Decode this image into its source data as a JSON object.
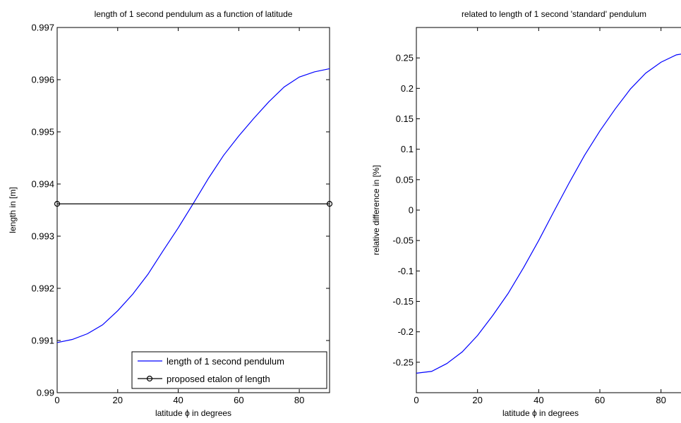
{
  "chart_data": [
    {
      "type": "line",
      "title": "length of 1 second pendulum as a function of latitude",
      "xlabel": "latitude ϕ in degrees",
      "ylabel": "length in [m]",
      "xlim": [
        0,
        90
      ],
      "ylim": [
        0.99,
        0.997
      ],
      "xticks": [
        0,
        20,
        40,
        60,
        80
      ],
      "xtick_labels": [
        "0",
        "20",
        "40",
        "60",
        "80"
      ],
      "yticks": [
        0.99,
        0.991,
        0.992,
        0.993,
        0.994,
        0.995,
        0.996,
        0.997
      ],
      "ytick_labels": [
        "0.99",
        "0.991",
        "0.992",
        "0.993",
        "0.994",
        "0.995",
        "0.996",
        "0.997"
      ],
      "grid": false,
      "legend_position": "bottom-right",
      "series": [
        {
          "name": "length of 1 second pendulum",
          "color": "#0000ff",
          "marker": "none",
          "x": [
            0,
            5,
            10,
            15,
            20,
            25,
            30,
            35,
            40,
            45,
            50,
            55,
            60,
            65,
            70,
            75,
            80,
            85,
            90
          ],
          "y": [
            0.99096,
            0.99102,
            0.99113,
            0.9913,
            0.99157,
            0.99189,
            0.99227,
            0.99272,
            0.99316,
            0.99363,
            0.99411,
            0.99455,
            0.99492,
            0.99526,
            0.99558,
            0.99586,
            0.99605,
            0.99615,
            0.99621
          ]
        },
        {
          "name": "proposed etalon of length",
          "color": "#000000",
          "marker": "o",
          "x": [
            0,
            90
          ],
          "y": [
            0.99362,
            0.99362
          ]
        }
      ]
    },
    {
      "type": "line",
      "title": "related to length of 1 second 'standard' pendulum",
      "xlabel": "latitude ϕ in degrees",
      "ylabel": "relative difference in [%]",
      "xlim": [
        0,
        90
      ],
      "ylim": [
        -0.3,
        0.3
      ],
      "xticks": [
        0,
        20,
        40,
        60,
        80
      ],
      "xtick_labels": [
        "0",
        "20",
        "40",
        "60",
        "80"
      ],
      "yticks": [
        -0.25,
        -0.2,
        -0.15,
        -0.1,
        -0.05,
        0,
        0.05,
        0.1,
        0.15,
        0.2,
        0.25
      ],
      "ytick_labels": [
        "-0.25",
        "-0.2",
        "-0.15",
        "-0.1",
        "-0.05",
        "0",
        "0.05",
        "0.1",
        "0.15",
        "0.2",
        "0.25"
      ],
      "grid": false,
      "series": [
        {
          "color": "#0000ff",
          "marker": "none",
          "x": [
            0,
            5,
            10,
            15,
            20,
            25,
            30,
            35,
            40,
            45,
            50,
            55,
            60,
            65,
            70,
            75,
            80,
            85,
            90
          ],
          "y": [
            -0.268,
            -0.265,
            -0.252,
            -0.233,
            -0.206,
            -0.173,
            -0.137,
            -0.095,
            -0.05,
            -0.002,
            0.045,
            0.09,
            0.13,
            0.166,
            0.199,
            0.225,
            0.243,
            0.255,
            0.259
          ]
        }
      ]
    }
  ]
}
